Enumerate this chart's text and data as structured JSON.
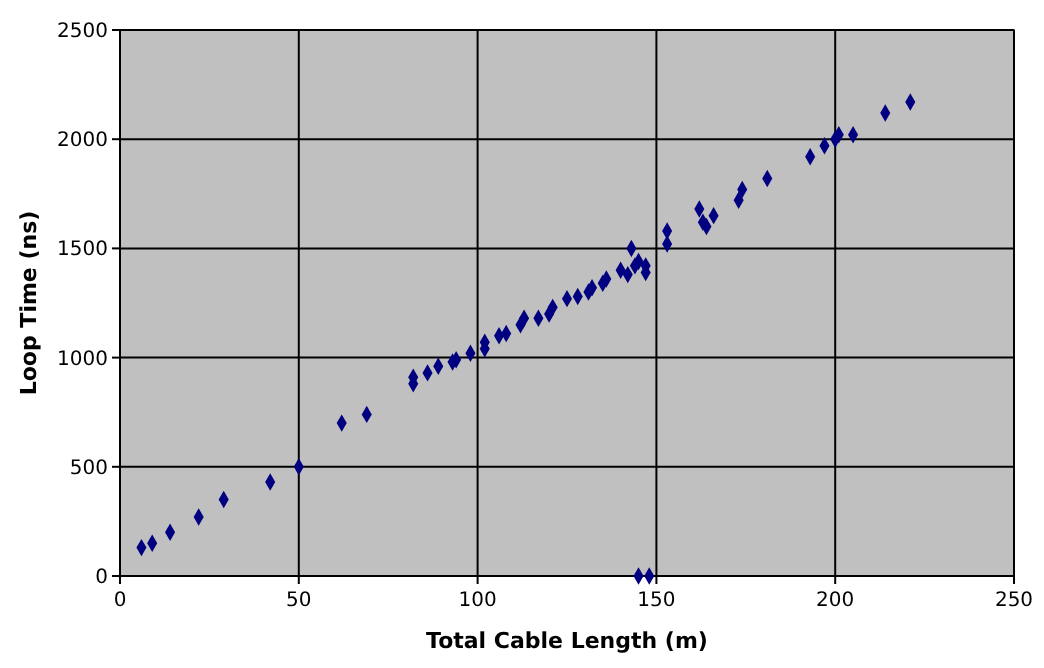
{
  "chart_data": {
    "type": "scatter",
    "xlabel": "Total Cable Length (m)",
    "ylabel": "Loop Time (ns)",
    "xlim": [
      0,
      250
    ],
    "xticks": [
      0,
      50,
      100,
      150,
      200,
      250
    ],
    "ylim": [
      0,
      2500
    ],
    "yticks": [
      0,
      500,
      1000,
      1500,
      2000,
      2500
    ],
    "grid": true,
    "marker": "diamond",
    "series": [
      {
        "color": "#000080",
        "x": [
          6,
          9,
          14,
          22,
          29,
          42,
          50,
          62,
          69,
          82,
          82,
          86,
          89,
          93,
          94,
          98,
          102,
          102,
          106,
          108,
          112,
          113,
          117,
          120,
          121,
          125,
          128,
          131,
          132,
          135,
          136,
          140,
          142,
          143,
          144,
          145,
          147,
          147,
          145,
          148,
          153,
          153,
          162,
          163,
          164,
          166,
          173,
          174,
          181,
          193,
          197,
          200,
          201,
          205,
          214,
          221
        ],
        "values": [
          130,
          150,
          200,
          270,
          350,
          430,
          500,
          700,
          740,
          880,
          910,
          930,
          960,
          980,
          990,
          1020,
          1040,
          1070,
          1100,
          1110,
          1150,
          1180,
          1180,
          1200,
          1230,
          1270,
          1280,
          1300,
          1320,
          1340,
          1360,
          1400,
          1380,
          1500,
          1420,
          1440,
          1420,
          1390,
          0,
          0,
          1520,
          1580,
          1680,
          1620,
          1600,
          1650,
          1720,
          1770,
          1820,
          1920,
          1970,
          2000,
          2020,
          2020,
          2120,
          2170
        ]
      }
    ]
  }
}
